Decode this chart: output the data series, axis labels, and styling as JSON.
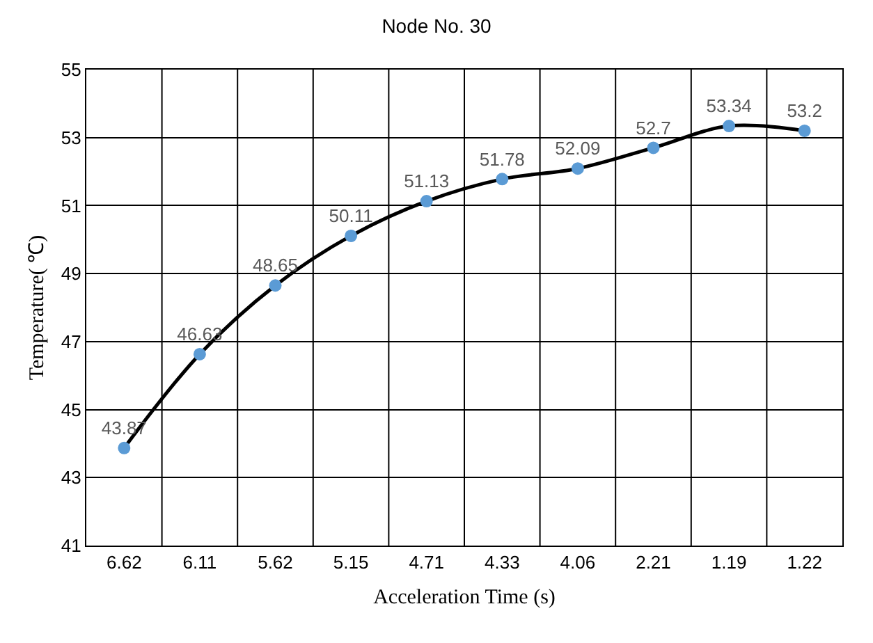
{
  "chart_data": {
    "type": "line",
    "title": "Node No. 30",
    "xlabel": "Acceleration Time (s)",
    "ylabel": "Temperature( ℃)",
    "categories": [
      "6.62",
      "6.11",
      "5.62",
      "5.15",
      "4.71",
      "4.33",
      "4.06",
      "2.21",
      "1.19",
      "1.22"
    ],
    "series": [
      {
        "color": "#000000",
        "values": [
          43.87,
          46.63,
          48.65,
          50.11,
          51.13,
          51.78,
          52.09,
          52.7,
          53.34,
          53.2
        ]
      }
    ],
    "ylim": [
      41,
      55
    ],
    "yticks": [
      41,
      43,
      45,
      47,
      49,
      51,
      53,
      55
    ],
    "grid": true,
    "marker": "circle",
    "line_style": "solid",
    "data_labels": true
  }
}
